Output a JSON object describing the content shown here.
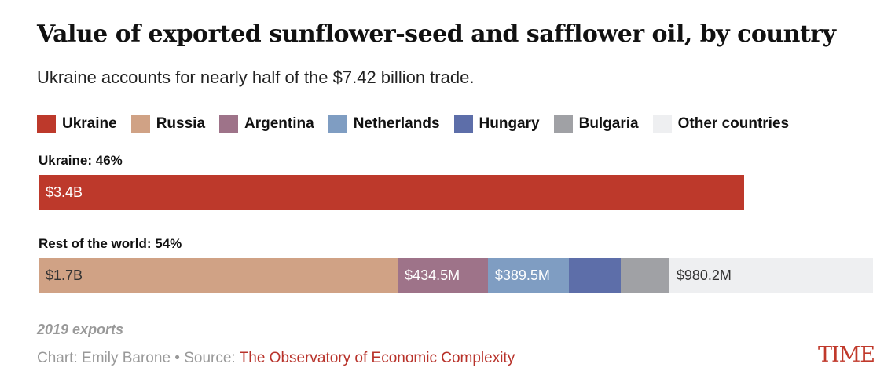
{
  "chart_data": {
    "type": "bar",
    "orientation": "horizontal-stacked",
    "title": "Value of exported sunflower-seed and safflower oil, by country",
    "subtitle": "Ukraine accounts for nearly half of the $7.42 billion trade.",
    "unit": "billion USD",
    "legend": [
      {
        "name": "Ukraine",
        "color": "#bd392b"
      },
      {
        "name": "Russia",
        "color": "#d0a285"
      },
      {
        "name": "Argentina",
        "color": "#9e7389"
      },
      {
        "name": "Netherlands",
        "color": "#7f9dc2"
      },
      {
        "name": "Hungary",
        "color": "#5d6ea9"
      },
      {
        "name": "Bulgaria",
        "color": "#a0a1a5"
      },
      {
        "name": "Other countries",
        "color": "#eeeff1"
      }
    ],
    "bars": [
      {
        "label": "Ukraine: 46%",
        "segments": [
          {
            "name": "Ukraine",
            "value": 3.4,
            "text": "$3.4B",
            "color": "#bd392b",
            "text_color": "#fff"
          }
        ]
      },
      {
        "label": "Rest of the world: 54%",
        "segments": [
          {
            "name": "Russia",
            "value": 1.73,
            "text": "$1.7B",
            "color": "#d0a285",
            "text_color": "#333"
          },
          {
            "name": "Argentina",
            "value": 0.4345,
            "text": "$434.5M",
            "color": "#9e7389",
            "text_color": "#fff"
          },
          {
            "name": "Netherlands",
            "value": 0.3895,
            "text": "$389.5M",
            "color": "#7f9dc2",
            "text_color": "#fff"
          },
          {
            "name": "Hungary",
            "value": 0.25,
            "text": "",
            "color": "#5d6ea9",
            "text_color": "#fff"
          },
          {
            "name": "Bulgaria",
            "value": 0.235,
            "text": "",
            "color": "#a0a1a5",
            "text_color": "#fff"
          },
          {
            "name": "Other countries",
            "value": 0.9802,
            "text": "$980.2M",
            "color": "#eeeff1",
            "text_color": "#333"
          }
        ]
      }
    ],
    "note": "2019 exports"
  },
  "footer": {
    "credit": "Chart: Emily Barone • Source: ",
    "source": "The Observatory of Economic Complexity",
    "logo": "TIME"
  }
}
